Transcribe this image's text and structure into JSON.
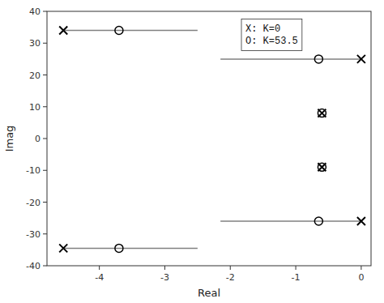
{
  "chart_data": {
    "type": "scatter",
    "x_label": "Real",
    "y_label": "Imag",
    "xlim": [
      -4.8,
      0.15
    ],
    "ylim": [
      -40,
      40
    ],
    "xticks": [
      -4,
      -3,
      -2,
      -1,
      0
    ],
    "yticks": [
      -40,
      -30,
      -20,
      -10,
      0,
      10,
      20,
      30,
      40
    ],
    "grid": false,
    "annotations": [
      "X: K=0",
      "O: K=53.5"
    ],
    "series": [
      {
        "type": "line",
        "color": "#808080",
        "x": [
          -4.55,
          -2.5
        ],
        "values": [
          34.0,
          34.0
        ]
      },
      {
        "type": "line",
        "color": "#808080",
        "x": [
          -4.55,
          -2.5
        ],
        "values": [
          -34.5,
          -34.5
        ]
      },
      {
        "type": "line",
        "color": "#808080",
        "x": [
          0.0,
          -2.15
        ],
        "values": [
          25.0,
          25.0
        ]
      },
      {
        "type": "line",
        "color": "#808080",
        "x": [
          0.0,
          -2.15
        ],
        "values": [
          -26.0,
          -26.0
        ]
      },
      {
        "type": "scatter",
        "marker": "o",
        "color": "#000000",
        "x": [
          -3.7,
          -3.7,
          -0.65,
          -0.65,
          -0.6,
          -0.6
        ],
        "values": [
          34.0,
          -34.5,
          25.0,
          -26.0,
          8.0,
          -9.0
        ]
      },
      {
        "type": "scatter",
        "marker": "x",
        "color": "#000000",
        "x": [
          -4.55,
          -4.55,
          0.0,
          0.0,
          -0.6,
          -0.6
        ],
        "values": [
          34.0,
          -34.5,
          25.0,
          -26.0,
          8.0,
          -9.0
        ]
      }
    ]
  }
}
